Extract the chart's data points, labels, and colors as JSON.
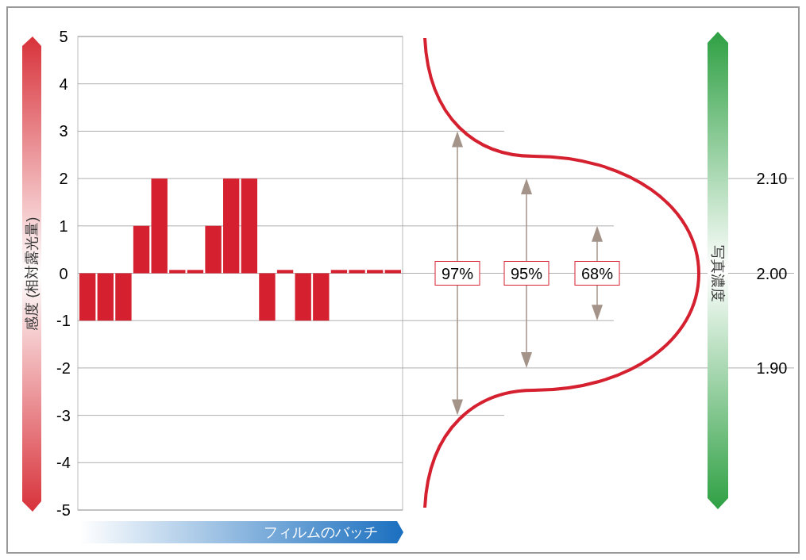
{
  "chart_data": {
    "type": "bar",
    "xlabel": "フィルムのバッチ",
    "ylabel": "感度 (相対露光量)",
    "y2label": "写真濃度",
    "categories": [
      null,
      null,
      null,
      null,
      null,
      null,
      null,
      null,
      null,
      null,
      null,
      null,
      null,
      null,
      null,
      null,
      null,
      null
    ],
    "values": [
      -1,
      -1,
      -1,
      1,
      2,
      0.07,
      0.07,
      1,
      2,
      2,
      -1,
      0.07,
      -1,
      -1,
      0.07,
      0.07,
      0.07,
      0.07
    ],
    "color": "#d52030",
    "ylim": [
      -5,
      5
    ],
    "yticks": [
      -5,
      -4,
      -3,
      -2,
      -1,
      0,
      1,
      2,
      3,
      4,
      5
    ],
    "y2lim": [
      1.75,
      2.25
    ],
    "y2ticks": [
      {
        "value": 1.9,
        "label": "1.90"
      },
      {
        "value": 2.0,
        "label": "2.00"
      },
      {
        "value": 2.1,
        "label": "2.10"
      }
    ],
    "grid": "y",
    "annotations": [
      "97%",
      "95%",
      "68%"
    ]
  }
}
